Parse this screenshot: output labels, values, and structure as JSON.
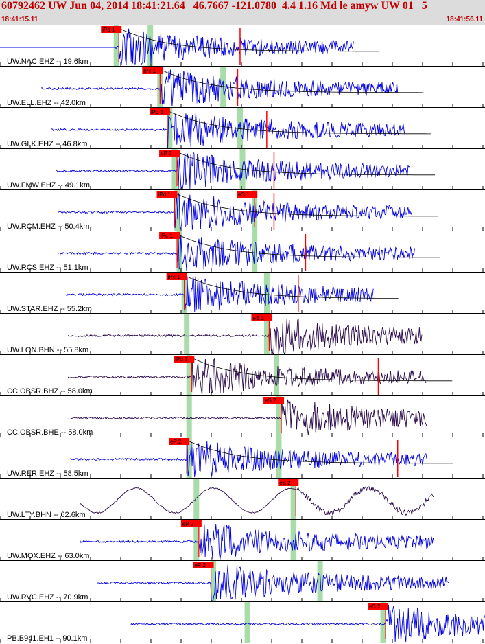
{
  "header": {
    "title": "60792462 UW Jun 04, 2014 18:41:21.64   46.7667 -121.0780  4.4 1.16 Md le amyw UW 01   5",
    "time_start": "18:41:15.11",
    "time_end": "18:41:56.11"
  },
  "colors": {
    "header_bg": "#dcdcdc",
    "header_text": "#c00000",
    "trace_blue": "#0000e0",
    "trace_purple": "#2a0a4a",
    "pick": "#ff0000",
    "window": "#a8dca8"
  },
  "traces": [
    {
      "label": "UW.NAC.EHZ -- 19.6km",
      "color": "blue",
      "pick": "iPd 1",
      "pick_t": 0.245,
      "green": [
        0.24,
        0.31
      ],
      "end_t": 0.73,
      "s_mark": 0.495,
      "curve": true,
      "start_t": 0.0,
      "flat_start": true
    },
    {
      "label": "UW.ELL.EHZ -- 42.0km",
      "color": "blue",
      "pick": "iPc 1",
      "pick_t": 0.33,
      "green": [
        0.33,
        0.46
      ],
      "end_t": 0.82,
      "s_mark": 0.49,
      "curve": true,
      "start_t": 0.085
    },
    {
      "label": "UW.GLK.EHZ -- 46.8km",
      "color": "blue",
      "pick": "iPd 1",
      "pick_t": 0.345,
      "green": [
        0.35,
        0.495
      ],
      "end_t": 0.835,
      "s_mark": 0.55,
      "curve": true,
      "start_t": 0.105
    },
    {
      "label": "UW.FMW.EHZ -- 49.1km",
      "color": "blue",
      "pick": "eP 2",
      "pick_t": 0.365,
      "green": [
        0.36,
        0.5
      ],
      "end_t": 0.845,
      "s_mark": 0.565,
      "curve": true,
      "start_t": 0.115
    },
    {
      "label": "UW.RCM.EHZ -- 50.4km",
      "color": "blue",
      "pick": "iPd 1",
      "pick_t": 0.36,
      "green": [
        0.365,
        0.525
      ],
      "end_t": 0.85,
      "s_mark": 0.565,
      "curve": true,
      "s_pick": "eS 1",
      "s_pick_t": 0.525,
      "start_t": 0.12
    },
    {
      "label": "UW.RCS.EHZ -- 51.1km",
      "color": "blue",
      "pick": "iPc 1",
      "pick_t": 0.365,
      "green": [
        0.37,
        0.525
      ],
      "end_t": 0.855,
      "s_mark": 0.63,
      "curve": true,
      "start_t": 0.12
    },
    {
      "label": "UW.STAR.EHZ -- 55.2km",
      "color": "blue",
      "pick": "iPc 1",
      "pick_t": 0.38,
      "green": [
        0.38,
        0.55
      ],
      "end_t": 0.77,
      "s_mark": 0.615,
      "curve": true,
      "start_t": 0.135
    },
    {
      "label": "UW.LON.BHN -- 55.8km",
      "color": "purple",
      "pick": "eS 2",
      "pick_t": 0.555,
      "green": [
        0.385,
        0.55
      ],
      "end_t": 0.87,
      "start_t": 0.14
    },
    {
      "label": "CC.OBSR.BHZ -- 58.0km",
      "color": "purple",
      "pick": "iPd 1",
      "pick_t": 0.395,
      "green": [
        0.39,
        0.57
      ],
      "end_t": 0.88,
      "s_mark": 0.78,
      "curve": true,
      "start_t": 0.14
    },
    {
      "label": "CC.OBSR.BHE -- 58.0km",
      "color": "purple",
      "pick": "eS 2",
      "pick_t": 0.58,
      "green": [
        0.39,
        0.575
      ],
      "end_t": 0.88,
      "start_t": 0.145
    },
    {
      "label": "UW.RER.EHZ -- 58.5km",
      "color": "blue",
      "pick": "eP 2",
      "pick_t": 0.385,
      "green": [
        0.39,
        0.575
      ],
      "end_t": 0.88,
      "s_mark": 0.82,
      "curve": true,
      "start_t": 0.145
    },
    {
      "label": "UW.LTY.BHN -- 62.6km",
      "color": "purple",
      "pick": "eS 2",
      "pick_t": 0.61,
      "green": [
        0.405,
        0.605
      ],
      "end_t": 0.895,
      "start_t": 0.165,
      "longperiod": true
    },
    {
      "label": "UW.MOX.EHZ -- 63.0km",
      "color": "blue",
      "pick": "eP 2",
      "pick_t": 0.41,
      "green": [
        0.405,
        0.605
      ],
      "end_t": 0.895,
      "start_t": 0.165
    },
    {
      "label": "UW.RVC.EHZ -- 70.9km",
      "color": "blue",
      "pick": "eP 2",
      "pick_t": 0.435,
      "green": [
        0.44,
        0.66
      ],
      "end_t": 0.925,
      "start_t": 0.2
    },
    {
      "label": "PB.B941.EH1 -- 90.1km",
      "color": "blue",
      "pick": "eS 2",
      "pick_t": 0.795,
      "green": [
        0.51,
        0.79
      ],
      "end_t": 1.0,
      "start_t": 0.27
    }
  ]
}
